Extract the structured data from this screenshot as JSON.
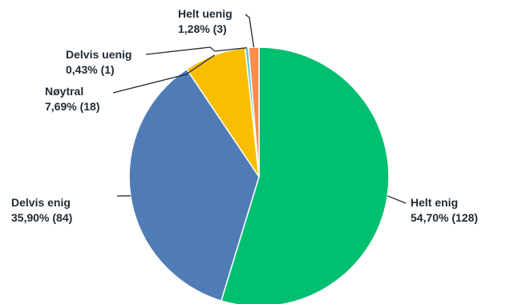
{
  "chart_data": {
    "type": "pie",
    "slices": [
      {
        "label": "Helt enig",
        "percent_text": "54,70% (128)",
        "percent": 54.7,
        "count": 128,
        "color": "#00bf6f"
      },
      {
        "label": "Delvis enig",
        "percent_text": "35,90% (84)",
        "percent": 35.9,
        "count": 84,
        "color": "#507cb6"
      },
      {
        "label": "Nøytral",
        "percent_text": "7,69% (18)",
        "percent": 7.69,
        "count": 18,
        "color": "#f9be00"
      },
      {
        "label": "Delvis uenig",
        "percent_text": "0,43% (1)",
        "percent": 0.43,
        "count": 1,
        "color": "#6bc8cd"
      },
      {
        "label": "Helt uenig",
        "percent_text": "1,28% (3)",
        "percent": 1.28,
        "count": 3,
        "color": "#ff8b4f"
      }
    ]
  }
}
